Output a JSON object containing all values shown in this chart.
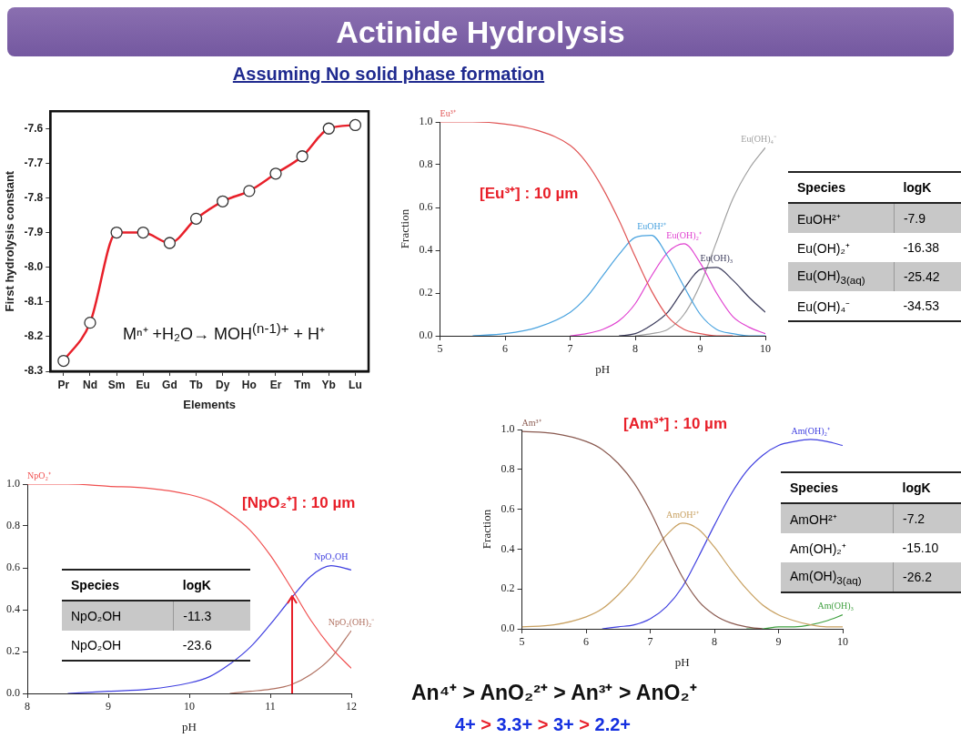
{
  "chart_data": [
    {
      "type": "other",
      "title": "Actinide Hydrolysis",
      "subtitle": "Assuming No solid phase formation"
    },
    {
      "type": "line",
      "categories": [
        "Pr",
        "Nd",
        "Sm",
        "Eu",
        "Gd",
        "Tb",
        "Dy",
        "Ho",
        "Er",
        "Tm",
        "Yb",
        "Lu"
      ],
      "values": [
        -8.27,
        -8.16,
        -7.9,
        -7.9,
        -7.93,
        -7.86,
        -7.81,
        -7.78,
        -7.73,
        -7.68,
        -7.6,
        -7.59
      ],
      "color": "#e8202a",
      "marker": "circle",
      "xlabel": "Elements",
      "ylabel": "First hydrolysis constant",
      "ylim": [
        -8.3,
        -7.55
      ],
      "yticks": [
        -8.3,
        -8.2,
        -8.1,
        {
          "value": -8,
          "label": "-8.0"
        },
        -7.9,
        -7.8,
        -7.7,
        -7.6
      ],
      "grid": false,
      "legend": false,
      "annotations": [
        "Mⁿ⁺ +H₂O→ MOH$^{(n-1)+}$ + H⁺"
      ]
    },
    {
      "type": "line",
      "x": [
        5,
        5.5,
        6,
        6.5,
        7,
        7.25,
        7.5,
        7.75,
        8,
        8.25,
        8.5,
        8.75,
        9,
        9.25,
        9.5,
        9.75,
        10
      ],
      "xlabel": "pH",
      "ylabel": "Fraction",
      "xlim": [
        5,
        10
      ],
      "xticks": [
        5,
        6,
        7,
        8,
        9,
        10
      ],
      "ylim": [
        0,
        1
      ],
      "yticks": [
        {
          "value": 0,
          "label": "0.0"
        },
        0.2,
        0.4,
        0.6,
        0.8,
        {
          "value": 1,
          "label": "1.0"
        }
      ],
      "grid": false,
      "legend": false,
      "annotations": [
        "[Eu³⁺] : 10 µm"
      ],
      "series": [
        {
          "name": "Eu³⁺",
          "color": "#e05555",
          "values": [
            1.0,
            1.0,
            0.99,
            0.96,
            0.89,
            0.81,
            0.69,
            0.54,
            0.37,
            0.21,
            0.09,
            0.03,
            0.01,
            0.0,
            0,
            null,
            null
          ]
        },
        {
          "name": "EuOH²⁺",
          "color": "#4aa3df",
          "values": [
            null,
            0,
            0.01,
            0.04,
            0.11,
            0.18,
            0.28,
            0.38,
            0.46,
            0.47,
            0.37,
            0.23,
            0.1,
            0.03,
            0.01,
            0,
            0
          ]
        },
        {
          "name": "Eu(OH)₂⁺",
          "color": "#e040d0",
          "values": [
            null,
            null,
            null,
            null,
            0,
            0.01,
            0.03,
            0.07,
            0.15,
            0.28,
            0.39,
            0.43,
            0.34,
            0.2,
            0.09,
            0.04,
            0.01
          ]
        },
        {
          "name": "Eu(OH)₃",
          "color": "#3c3c5c",
          "values": [
            null,
            null,
            null,
            null,
            null,
            null,
            null,
            0,
            0.01,
            0.05,
            0.11,
            0.22,
            0.31,
            0.32,
            0.26,
            0.18,
            0.11
          ]
        },
        {
          "name": "Eu(OH)₄⁻",
          "color": "#a0a0a0",
          "values": [
            null,
            null,
            null,
            null,
            null,
            null,
            null,
            null,
            0,
            0.01,
            0.03,
            0.1,
            0.24,
            0.44,
            0.64,
            0.78,
            0.88
          ]
        }
      ]
    },
    {
      "type": "other",
      "annotations": [
        "Species",
        "logK",
        "EuOH²⁺",
        "-7.9",
        "Eu(OH)₂⁺",
        "-16.38",
        "Eu(OH)$_{3(aq)}$",
        "-25.42",
        "Eu(OH)₄⁻",
        "-34.53"
      ]
    },
    {
      "type": "line",
      "x": [
        8,
        8.5,
        9,
        9.5,
        10,
        10.25,
        10.5,
        10.75,
        11,
        11.25,
        11.5,
        11.75,
        12
      ],
      "xlabel": "pH",
      "xlim": [
        8,
        12
      ],
      "xticks": [
        8,
        9,
        10,
        11,
        12
      ],
      "ylim": [
        0,
        1
      ],
      "yticks": [
        {
          "value": 0,
          "label": "0.0"
        },
        0.2,
        0.4,
        0.6,
        0.8,
        {
          "value": 1,
          "label": "1.0"
        }
      ],
      "grid": false,
      "legend": false,
      "annotations": [
        "[NpO₂⁺] : 10 µm"
      ],
      "series": [
        {
          "name": "NpO₂⁺",
          "color": "#f05050",
          "values": [
            1.0,
            1.0,
            0.99,
            0.98,
            0.95,
            0.92,
            0.86,
            0.78,
            0.66,
            0.51,
            0.35,
            0.22,
            0.12
          ]
        },
        {
          "name": "NpO₂OH",
          "color": "#4040e0",
          "values": [
            null,
            0,
            0.01,
            0.02,
            0.05,
            0.08,
            0.14,
            0.22,
            0.33,
            0.45,
            0.56,
            0.61,
            0.59
          ]
        },
        {
          "name": "NpO₂(OH)₂⁻",
          "color": "#b07060",
          "values": [
            null,
            null,
            null,
            null,
            null,
            null,
            0,
            0.01,
            0.02,
            0.04,
            0.09,
            0.17,
            0.3
          ]
        }
      ]
    },
    {
      "type": "other",
      "annotations": [
        "Species",
        "logK",
        "NpO₂OH",
        "-11.3",
        "NpO₂OH",
        "-23.6"
      ]
    },
    {
      "type": "line",
      "x": [
        5,
        5.5,
        6,
        6.25,
        6.5,
        6.75,
        7,
        7.25,
        7.5,
        7.75,
        8,
        8.25,
        8.5,
        8.75,
        9,
        9.25,
        9.5,
        9.75,
        10
      ],
      "xlabel": "pH",
      "ylabel": "Fraction",
      "xlim": [
        5,
        10
      ],
      "xticks": [
        5,
        6,
        7,
        8,
        9,
        10
      ],
      "ylim": [
        0,
        1
      ],
      "yticks": [
        {
          "value": 0,
          "label": "0.0"
        },
        0.2,
        0.4,
        0.6,
        0.8,
        {
          "value": 1,
          "label": "1.0"
        }
      ],
      "grid": false,
      "legend": false,
      "annotations": [
        "[Am³⁺] : 10 µm"
      ],
      "series": [
        {
          "name": "Am³⁺",
          "color": "#8a5a50",
          "values": [
            0.99,
            0.98,
            0.94,
            0.9,
            0.83,
            0.73,
            0.59,
            0.42,
            0.26,
            0.14,
            0.07,
            0.03,
            0.01,
            0.0,
            null,
            null,
            null,
            null,
            null
          ]
        },
        {
          "name": "AmOH²⁺",
          "color": "#c8a060",
          "values": [
            0.01,
            0.02,
            0.06,
            0.1,
            0.17,
            0.26,
            0.37,
            0.47,
            0.53,
            0.5,
            0.41,
            0.3,
            0.2,
            0.12,
            0.07,
            0.04,
            0.02,
            0.01,
            0.01
          ]
        },
        {
          "name": "Am(OH)₂⁺",
          "color": "#4040e0",
          "values": [
            null,
            null,
            null,
            0,
            0.01,
            0.02,
            0.05,
            0.11,
            0.21,
            0.36,
            0.52,
            0.67,
            0.79,
            0.87,
            0.92,
            0.94,
            0.95,
            0.94,
            0.92
          ]
        },
        {
          "name": "Am(OH)₃",
          "color": "#40a040",
          "values": [
            null,
            null,
            null,
            null,
            null,
            null,
            null,
            null,
            null,
            null,
            null,
            null,
            0,
            0,
            0.01,
            0.01,
            0.02,
            0.04,
            0.07
          ]
        }
      ]
    },
    {
      "type": "other",
      "annotations": [
        "Species",
        "logK",
        "AmOH²⁺",
        "-7.2",
        "Am(OH)₂⁺",
        "-15.10",
        "Am(OH)$_{3(aq)}$",
        "-26.2"
      ]
    },
    {
      "type": "other",
      "annotations": [
        "An⁴⁺ > AnO₂²⁺ > An³⁺ > AnO₂⁺",
        "4+ > 3.3+ > 3+ > 2.2+"
      ]
    }
  ]
}
